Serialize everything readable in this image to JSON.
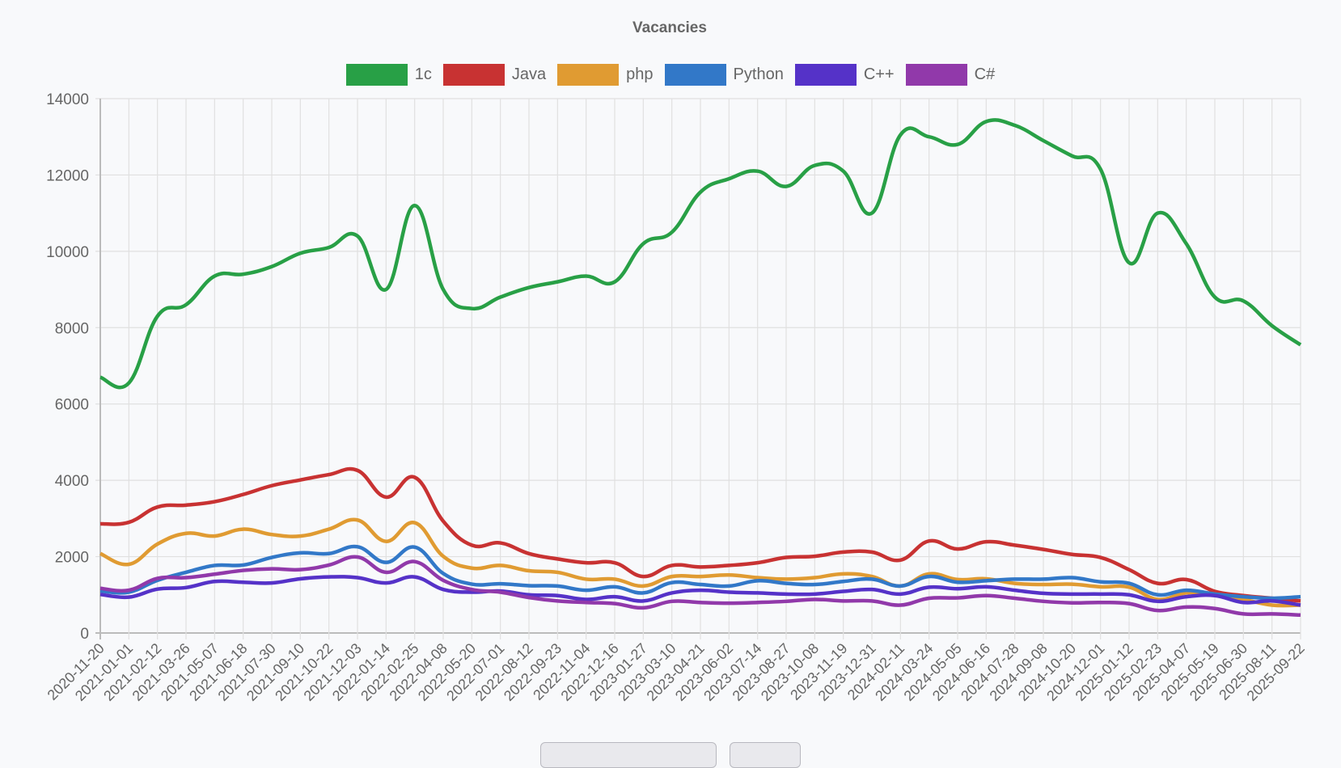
{
  "chart_data": {
    "type": "line",
    "title": "Vacancies",
    "xlabel": "",
    "ylabel": "",
    "ylim": [
      0,
      14000
    ],
    "yticks": [
      0,
      2000,
      4000,
      6000,
      8000,
      10000,
      12000,
      14000
    ],
    "grid": true,
    "legend_position": "top",
    "categories": [
      "2020-11-20",
      "2021-01-01",
      "2021-02-12",
      "2021-03-26",
      "2021-05-07",
      "2021-06-18",
      "2021-07-30",
      "2021-09-10",
      "2021-10-22",
      "2021-12-03",
      "2022-01-14",
      "2022-02-25",
      "2022-04-08",
      "2022-05-20",
      "2022-07-01",
      "2022-08-12",
      "2022-09-23",
      "2022-11-04",
      "2022-12-16",
      "2023-01-27",
      "2023-03-10",
      "2023-04-21",
      "2023-06-02",
      "2023-07-14",
      "2023-08-27",
      "2023-10-08",
      "2023-11-19",
      "2023-12-31",
      "2024-02-11",
      "2024-03-24",
      "2024-05-05",
      "2024-06-16",
      "2024-07-28",
      "2024-09-08",
      "2024-10-20",
      "2024-12-01",
      "2025-01-12",
      "2025-02-23",
      "2025-04-07",
      "2025-05-19",
      "2025-06-30",
      "2025-08-11",
      "2025-09-22"
    ],
    "series": [
      {
        "name": "1c",
        "color": "#28a046",
        "values": [
          6700,
          6550,
          8300,
          8600,
          9350,
          9400,
          9600,
          9950,
          10100,
          10400,
          9000,
          11200,
          9000,
          8500,
          8800,
          9050,
          9200,
          9350,
          9200,
          10200,
          10500,
          11550,
          11900,
          12100,
          11700,
          12250,
          12100,
          11000,
          13050,
          13000,
          12800,
          13400,
          13300,
          12900,
          12500,
          12150,
          9700,
          11000,
          10200,
          8800,
          8700,
          8050,
          7550
        ]
      },
      {
        "name": "Java",
        "color": "#c83232",
        "values": [
          2860,
          2900,
          3300,
          3350,
          3440,
          3630,
          3860,
          4010,
          4150,
          4260,
          3560,
          4080,
          2930,
          2300,
          2360,
          2080,
          1940,
          1840,
          1840,
          1480,
          1770,
          1730,
          1770,
          1840,
          1980,
          2010,
          2120,
          2120,
          1910,
          2410,
          2200,
          2390,
          2300,
          2190,
          2060,
          1980,
          1660,
          1300,
          1400,
          1090,
          980,
          910,
          840
        ]
      },
      {
        "name": "php",
        "color": "#e09b32",
        "values": [
          2080,
          1800,
          2330,
          2610,
          2540,
          2720,
          2580,
          2540,
          2720,
          2960,
          2400,
          2890,
          2010,
          1700,
          1770,
          1630,
          1590,
          1410,
          1410,
          1230,
          1480,
          1480,
          1520,
          1450,
          1410,
          1450,
          1550,
          1480,
          1230,
          1550,
          1400,
          1420,
          1300,
          1270,
          1280,
          1210,
          1200,
          880,
          1050,
          1020,
          880,
          730,
          730
        ]
      },
      {
        "name": "Python",
        "color": "#3278c8",
        "values": [
          1100,
          1070,
          1380,
          1590,
          1770,
          1780,
          1980,
          2100,
          2080,
          2260,
          1850,
          2250,
          1560,
          1280,
          1290,
          1240,
          1230,
          1120,
          1210,
          1050,
          1320,
          1270,
          1230,
          1370,
          1300,
          1270,
          1350,
          1410,
          1230,
          1480,
          1330,
          1370,
          1410,
          1410,
          1450,
          1340,
          1300,
          1000,
          1120,
          1020,
          950,
          910,
          950
        ]
      },
      {
        "name": "C++",
        "color": "#5532c8",
        "values": [
          1010,
          940,
          1150,
          1190,
          1350,
          1330,
          1310,
          1420,
          1470,
          1450,
          1310,
          1470,
          1140,
          1070,
          1100,
          1000,
          980,
          880,
          950,
          840,
          1050,
          1120,
          1070,
          1050,
          1020,
          1020,
          1090,
          1140,
          1020,
          1200,
          1160,
          1210,
          1120,
          1040,
          1020,
          1020,
          1000,
          830,
          950,
          980,
          800,
          840,
          730
        ]
      },
      {
        "name": "C#",
        "color": "#9139aa",
        "values": [
          1170,
          1120,
          1430,
          1450,
          1540,
          1640,
          1680,
          1660,
          1780,
          1990,
          1590,
          1870,
          1380,
          1140,
          1070,
          930,
          840,
          800,
          770,
          660,
          830,
          800,
          780,
          800,
          830,
          880,
          840,
          840,
          730,
          910,
          920,
          980,
          910,
          830,
          790,
          800,
          770,
          590,
          680,
          640,
          500,
          500,
          470
        ]
      }
    ]
  }
}
